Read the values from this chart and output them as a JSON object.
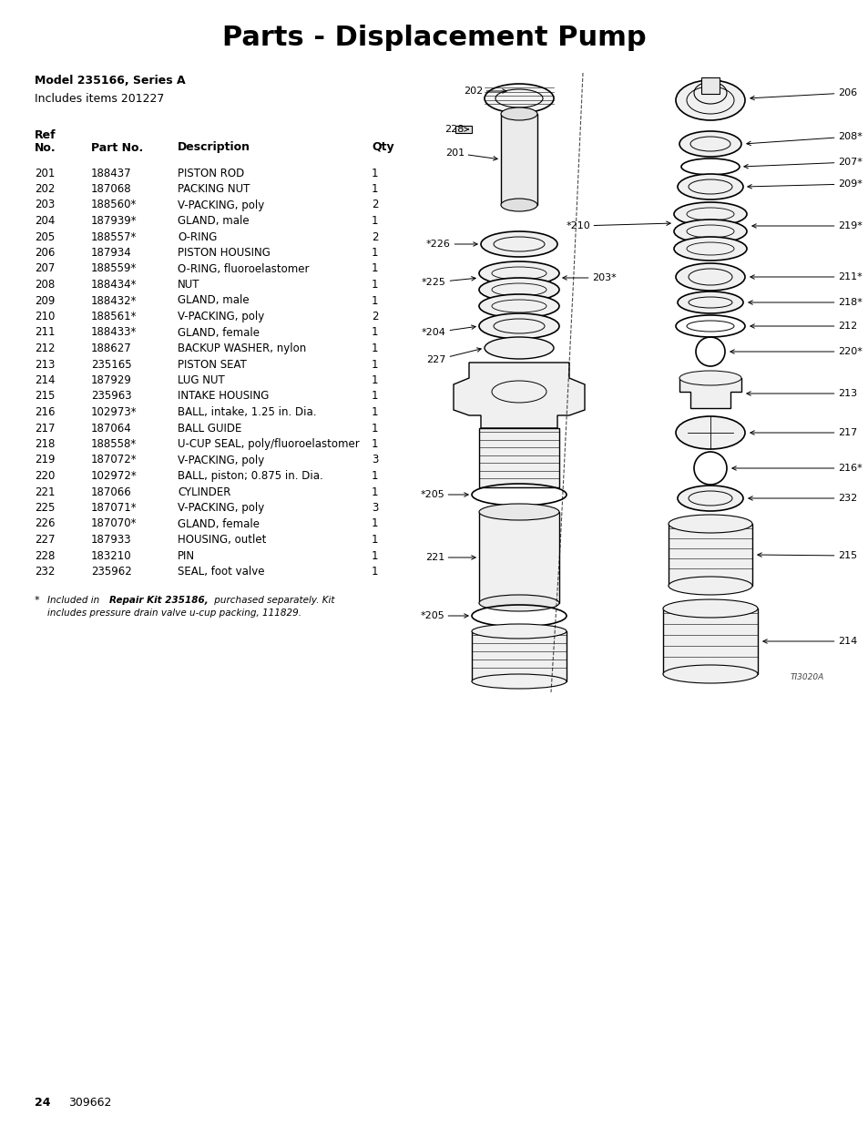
{
  "title": "Parts - Displacement Pump",
  "model_line": "Model 235166, Series A",
  "includes_line": "Includes items 201227",
  "parts": [
    [
      "201",
      "188437",
      "PISTON ROD",
      "1"
    ],
    [
      "202",
      "187068",
      "PACKING NUT",
      "1"
    ],
    [
      "203",
      "188560*",
      "V-PACKING, poly",
      "2"
    ],
    [
      "204",
      "187939*",
      "GLAND, male",
      "1"
    ],
    [
      "205",
      "188557*",
      "O-RING",
      "2"
    ],
    [
      "206",
      "187934",
      "PISTON HOUSING",
      "1"
    ],
    [
      "207",
      "188559*",
      "O-RING, fluoroelastomer",
      "1"
    ],
    [
      "208",
      "188434*",
      "NUT",
      "1"
    ],
    [
      "209",
      "188432*",
      "GLAND, male",
      "1"
    ],
    [
      "210",
      "188561*",
      "V-PACKING, poly",
      "2"
    ],
    [
      "211",
      "188433*",
      "GLAND, female",
      "1"
    ],
    [
      "212",
      "188627",
      "BACKUP WASHER, nylon",
      "1"
    ],
    [
      "213",
      "235165",
      "PISTON SEAT",
      "1"
    ],
    [
      "214",
      "187929",
      "LUG NUT",
      "1"
    ],
    [
      "215",
      "235963",
      "INTAKE HOUSING",
      "1"
    ],
    [
      "216",
      "102973*",
      "BALL, intake, 1.25 in. Dia.",
      "1"
    ],
    [
      "217",
      "187064",
      "BALL GUIDE",
      "1"
    ],
    [
      "218",
      "188558*",
      "U-CUP SEAL, poly/fluoroelastomer",
      "1"
    ],
    [
      "219",
      "187072*",
      "V-PACKING, poly",
      "3"
    ],
    [
      "220",
      "102972*",
      "BALL, piston; 0.875 in. Dia.",
      "1"
    ],
    [
      "221",
      "187066",
      "CYLINDER",
      "1"
    ],
    [
      "225",
      "187071*",
      "V-PACKING, poly",
      "3"
    ],
    [
      "226",
      "187070*",
      "GLAND, female",
      "1"
    ],
    [
      "227",
      "187933",
      "HOUSING, outlet",
      "1"
    ],
    [
      "228",
      "183210",
      "PIN",
      "1"
    ],
    [
      "232",
      "235962",
      "SEAL, foot valve",
      "1"
    ]
  ],
  "page_num": "24",
  "doc_num": "309662",
  "bg_color": "#ffffff",
  "text_color": "#000000"
}
